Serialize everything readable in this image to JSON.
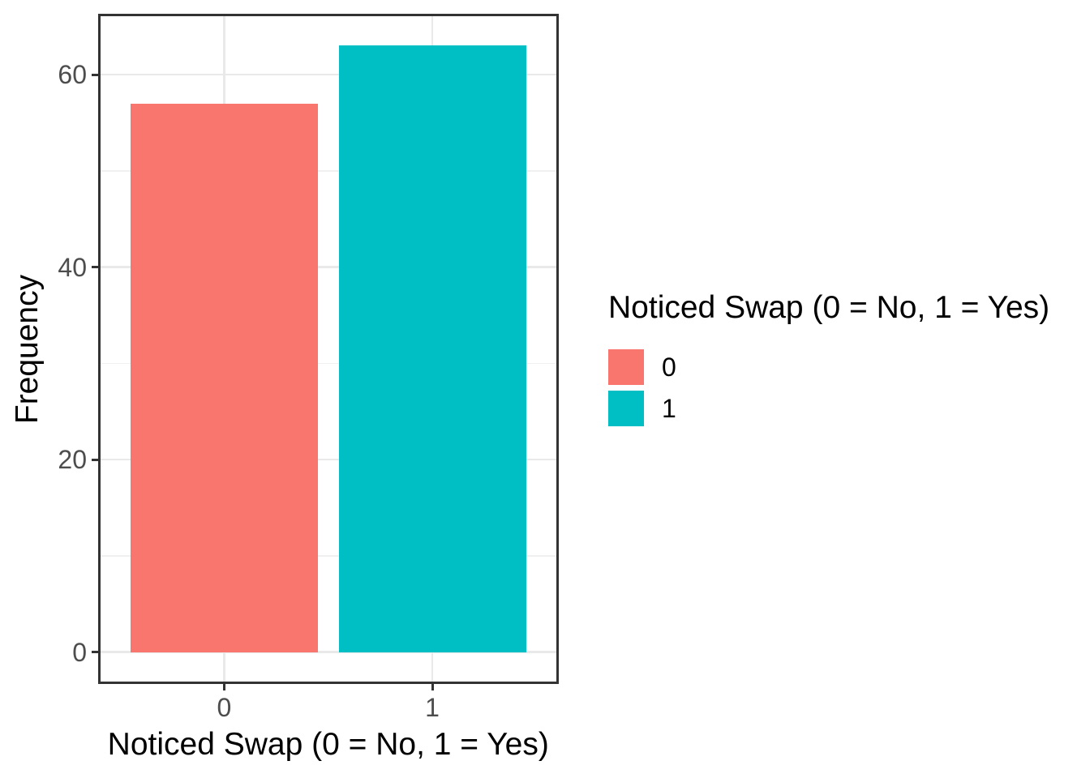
{
  "chart_data": {
    "type": "bar",
    "title": "",
    "xlabel": "Noticed Swap (0 = No, 1 = Yes)",
    "ylabel": "Frequency",
    "categories": [
      "0",
      "1"
    ],
    "values": [
      57,
      63
    ],
    "bar_colors": [
      "#F8766D",
      "#00BFC4"
    ],
    "ylim": [
      0,
      66
    ],
    "yticks": [
      0,
      20,
      40,
      60
    ],
    "yticks_minor": [
      10,
      30,
      50
    ],
    "grid": "horizontal major+minor, vertical major at category centers",
    "legend_position": "right",
    "legend": {
      "title": "Noticed Swap (0 = No, 1 = Yes)",
      "entries": [
        {
          "label": "0",
          "color": "#F8766D"
        },
        {
          "label": "1",
          "color": "#00BFC4"
        }
      ]
    },
    "style": {
      "panel_background": "#FFFFFF",
      "panel_border_color": "#333333",
      "grid_major_color": "#E9E9E9",
      "grid_minor_color": "#F0F0F0",
      "tick_mark_color": "#333333",
      "axis_text_color": "#4D4D4D",
      "axis_title_color": "#000000"
    }
  }
}
